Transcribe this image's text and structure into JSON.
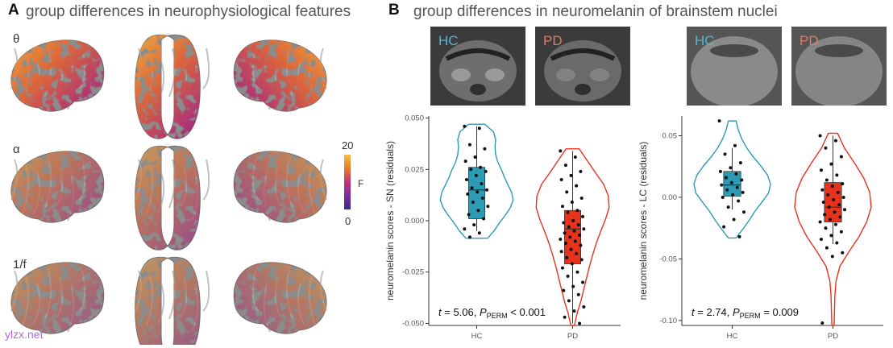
{
  "panel_a": {
    "letter": "A",
    "title": "group differences in neurophysiological features",
    "rows": [
      {
        "label": "θ",
        "intensity": 0.9
      },
      {
        "label": "α",
        "intensity": 0.55
      },
      {
        "label": "1/f",
        "intensity": 0.45
      }
    ],
    "colorbar": {
      "max_label": "20",
      "min_label": "0",
      "title": "F"
    }
  },
  "panel_b": {
    "letter": "B",
    "title": "group differences in neuromelanin of brainstem nuclei",
    "mri_labels": [
      "HC",
      "PD",
      "HC",
      "PD"
    ]
  },
  "colors": {
    "hc": "#2e9bb5",
    "pd": "#e8331c",
    "hc_label": "#5fb3c9",
    "pd_label": "#e07a68"
  },
  "chart_data": [
    {
      "type": "violin-box",
      "categories": [
        "HC",
        "PD"
      ],
      "ylabel": "neuromelanin scores - SN (residuals)",
      "ylim": [
        -0.051,
        0.051
      ],
      "yticks": [
        0.05,
        0.025,
        0.0,
        -0.025,
        -0.05
      ],
      "ytick_labels": [
        "0.050",
        "0.025",
        "0.000",
        "-0.025",
        "-0.050"
      ],
      "stats": {
        "t": "t",
        "t_value": " = 5.06, ",
        "p": "P",
        "p_sub": "PERM",
        "p_value": " < 0.001"
      },
      "series": [
        {
          "name": "HC",
          "box": {
            "min": -0.005,
            "q1": 0.001,
            "median": 0.015,
            "q3": 0.026,
            "max": 0.046
          },
          "violin_range": [
            -0.0085,
            0.047
          ],
          "violin_width": [
            0.3,
            0.48,
            0.62,
            0.78,
            0.92,
            1.0,
            0.96,
            0.86,
            0.76,
            0.68,
            0.58,
            0.52,
            0.5,
            0.52,
            0.46,
            0.22
          ],
          "points": [
            0.046,
            0.045,
            0.037,
            0.035,
            0.031,
            0.029,
            0.026,
            0.025,
            0.024,
            0.022,
            0.02,
            0.018,
            0.016,
            0.015,
            0.014,
            0.013,
            0.011,
            0.009,
            0.007,
            0.005,
            0.003,
            0.001,
            -0.002,
            -0.004,
            -0.006,
            -0.008
          ]
        },
        {
          "name": "PD",
          "box": {
            "min": -0.05,
            "q1": -0.021,
            "median": -0.004,
            "q3": 0.005,
            "max": 0.034
          },
          "violin_range": [
            -0.051,
            0.035
          ],
          "violin_width": [
            0.05,
            0.12,
            0.22,
            0.3,
            0.38,
            0.46,
            0.55,
            0.65,
            0.77,
            0.9,
            1.0,
            0.98,
            0.85,
            0.62,
            0.4,
            0.18
          ],
          "points": [
            0.034,
            0.031,
            0.027,
            0.024,
            0.022,
            0.02,
            0.017,
            0.014,
            0.011,
            0.009,
            0.007,
            0.005,
            0.004,
            0.002,
            0.0,
            -0.001,
            -0.002,
            -0.003,
            -0.004,
            -0.005,
            -0.006,
            -0.007,
            -0.008,
            -0.009,
            -0.01,
            -0.011,
            -0.012,
            -0.014,
            -0.015,
            -0.016,
            -0.018,
            -0.019,
            -0.021,
            -0.023,
            -0.025,
            -0.027,
            -0.03,
            -0.032,
            -0.034,
            -0.036,
            -0.039,
            -0.042,
            -0.044,
            -0.047,
            -0.05
          ]
        }
      ]
    },
    {
      "type": "violin-box",
      "categories": [
        "HC",
        "PD"
      ],
      "ylabel": "neuromelanin scores - LC (residuals)",
      "ylim": [
        -0.104,
        0.066
      ],
      "yticks": [
        0.05,
        0.0,
        -0.05,
        -0.1
      ],
      "ytick_labels": [
        "0.05",
        "0.00",
        "-0.05",
        "-0.10"
      ],
      "stats": {
        "t": "t",
        "t_value": " = 2.74, ",
        "p": "P",
        "p_sub": "PERM",
        "p_value": " = 0.009"
      },
      "series": [
        {
          "name": "HC",
          "box": {
            "min": -0.01,
            "q1": 0.001,
            "median": 0.01,
            "q3": 0.021,
            "max": 0.04
          },
          "violin_range": [
            -0.033,
            0.062
          ],
          "violin_width": [
            0.1,
            0.28,
            0.45,
            0.6,
            0.78,
            0.95,
            1.0,
            0.92,
            0.75,
            0.55,
            0.38,
            0.25,
            0.16,
            0.1
          ],
          "points": [
            0.062,
            0.042,
            0.035,
            0.028,
            0.024,
            0.021,
            0.019,
            0.016,
            0.014,
            0.012,
            0.01,
            0.008,
            0.006,
            0.004,
            0.002,
            0.0,
            -0.003,
            -0.008,
            -0.012,
            -0.018,
            -0.024,
            -0.032
          ]
        },
        {
          "name": "PD",
          "box": {
            "min": -0.038,
            "q1": -0.02,
            "median": -0.008,
            "q3": 0.012,
            "max": 0.05
          },
          "violin_range": [
            -0.104,
            0.052
          ],
          "violin_width": [
            0.03,
            0.04,
            0.05,
            0.08,
            0.18,
            0.42,
            0.68,
            0.88,
            1.0,
            0.96,
            0.8,
            0.56,
            0.3,
            0.12
          ],
          "points": [
            0.05,
            0.046,
            0.04,
            0.033,
            0.027,
            0.022,
            0.018,
            0.014,
            0.011,
            0.009,
            0.006,
            0.004,
            0.002,
            0.0,
            -0.002,
            -0.004,
            -0.006,
            -0.008,
            -0.01,
            -0.012,
            -0.014,
            -0.016,
            -0.018,
            -0.02,
            -0.022,
            -0.025,
            -0.028,
            -0.031,
            -0.034,
            -0.037,
            -0.041,
            -0.045,
            -0.048,
            -0.102
          ]
        }
      ]
    }
  ],
  "watermark": "ylzx.net"
}
